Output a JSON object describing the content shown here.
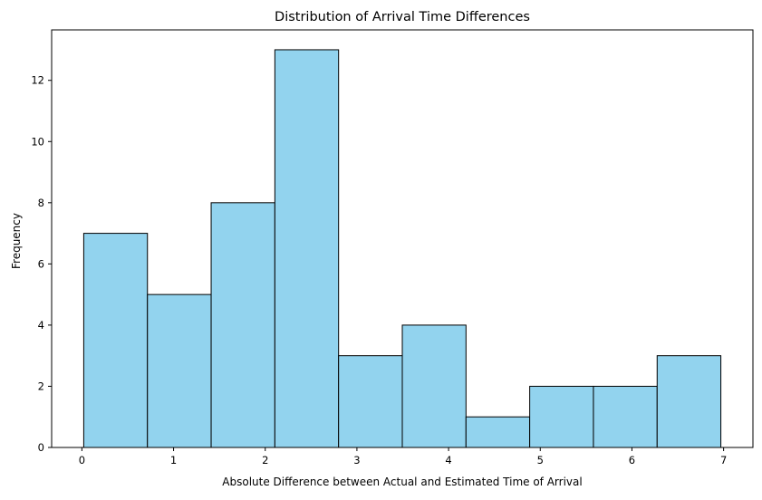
{
  "chart_data": {
    "type": "bar",
    "title": "Distribution of Arrival Time Differences",
    "xlabel": "Absolute Difference between Actual and Estimated Time of Arrival",
    "ylabel": "Frequency",
    "bins": [
      {
        "start": 0.02,
        "end": 0.715,
        "count": 7
      },
      {
        "start": 0.715,
        "end": 1.41,
        "count": 5
      },
      {
        "start": 1.41,
        "end": 2.105,
        "count": 8
      },
      {
        "start": 2.105,
        "end": 2.8,
        "count": 13
      },
      {
        "start": 2.8,
        "end": 3.495,
        "count": 3
      },
      {
        "start": 3.495,
        "end": 4.19,
        "count": 4
      },
      {
        "start": 4.19,
        "end": 4.885,
        "count": 1
      },
      {
        "start": 4.885,
        "end": 5.58,
        "count": 2
      },
      {
        "start": 5.58,
        "end": 6.275,
        "count": 2
      },
      {
        "start": 6.275,
        "end": 6.97,
        "count": 3
      }
    ],
    "xlim": [
      -0.33,
      7.32
    ],
    "ylim": [
      0,
      13.65
    ],
    "xticks": [
      0,
      1,
      2,
      3,
      4,
      5,
      6,
      7
    ],
    "yticks": [
      0,
      2,
      4,
      6,
      8,
      10,
      12
    ],
    "bar_color": "#92d3ee",
    "edge_color": "#000000",
    "grid": false,
    "legend": "none"
  }
}
